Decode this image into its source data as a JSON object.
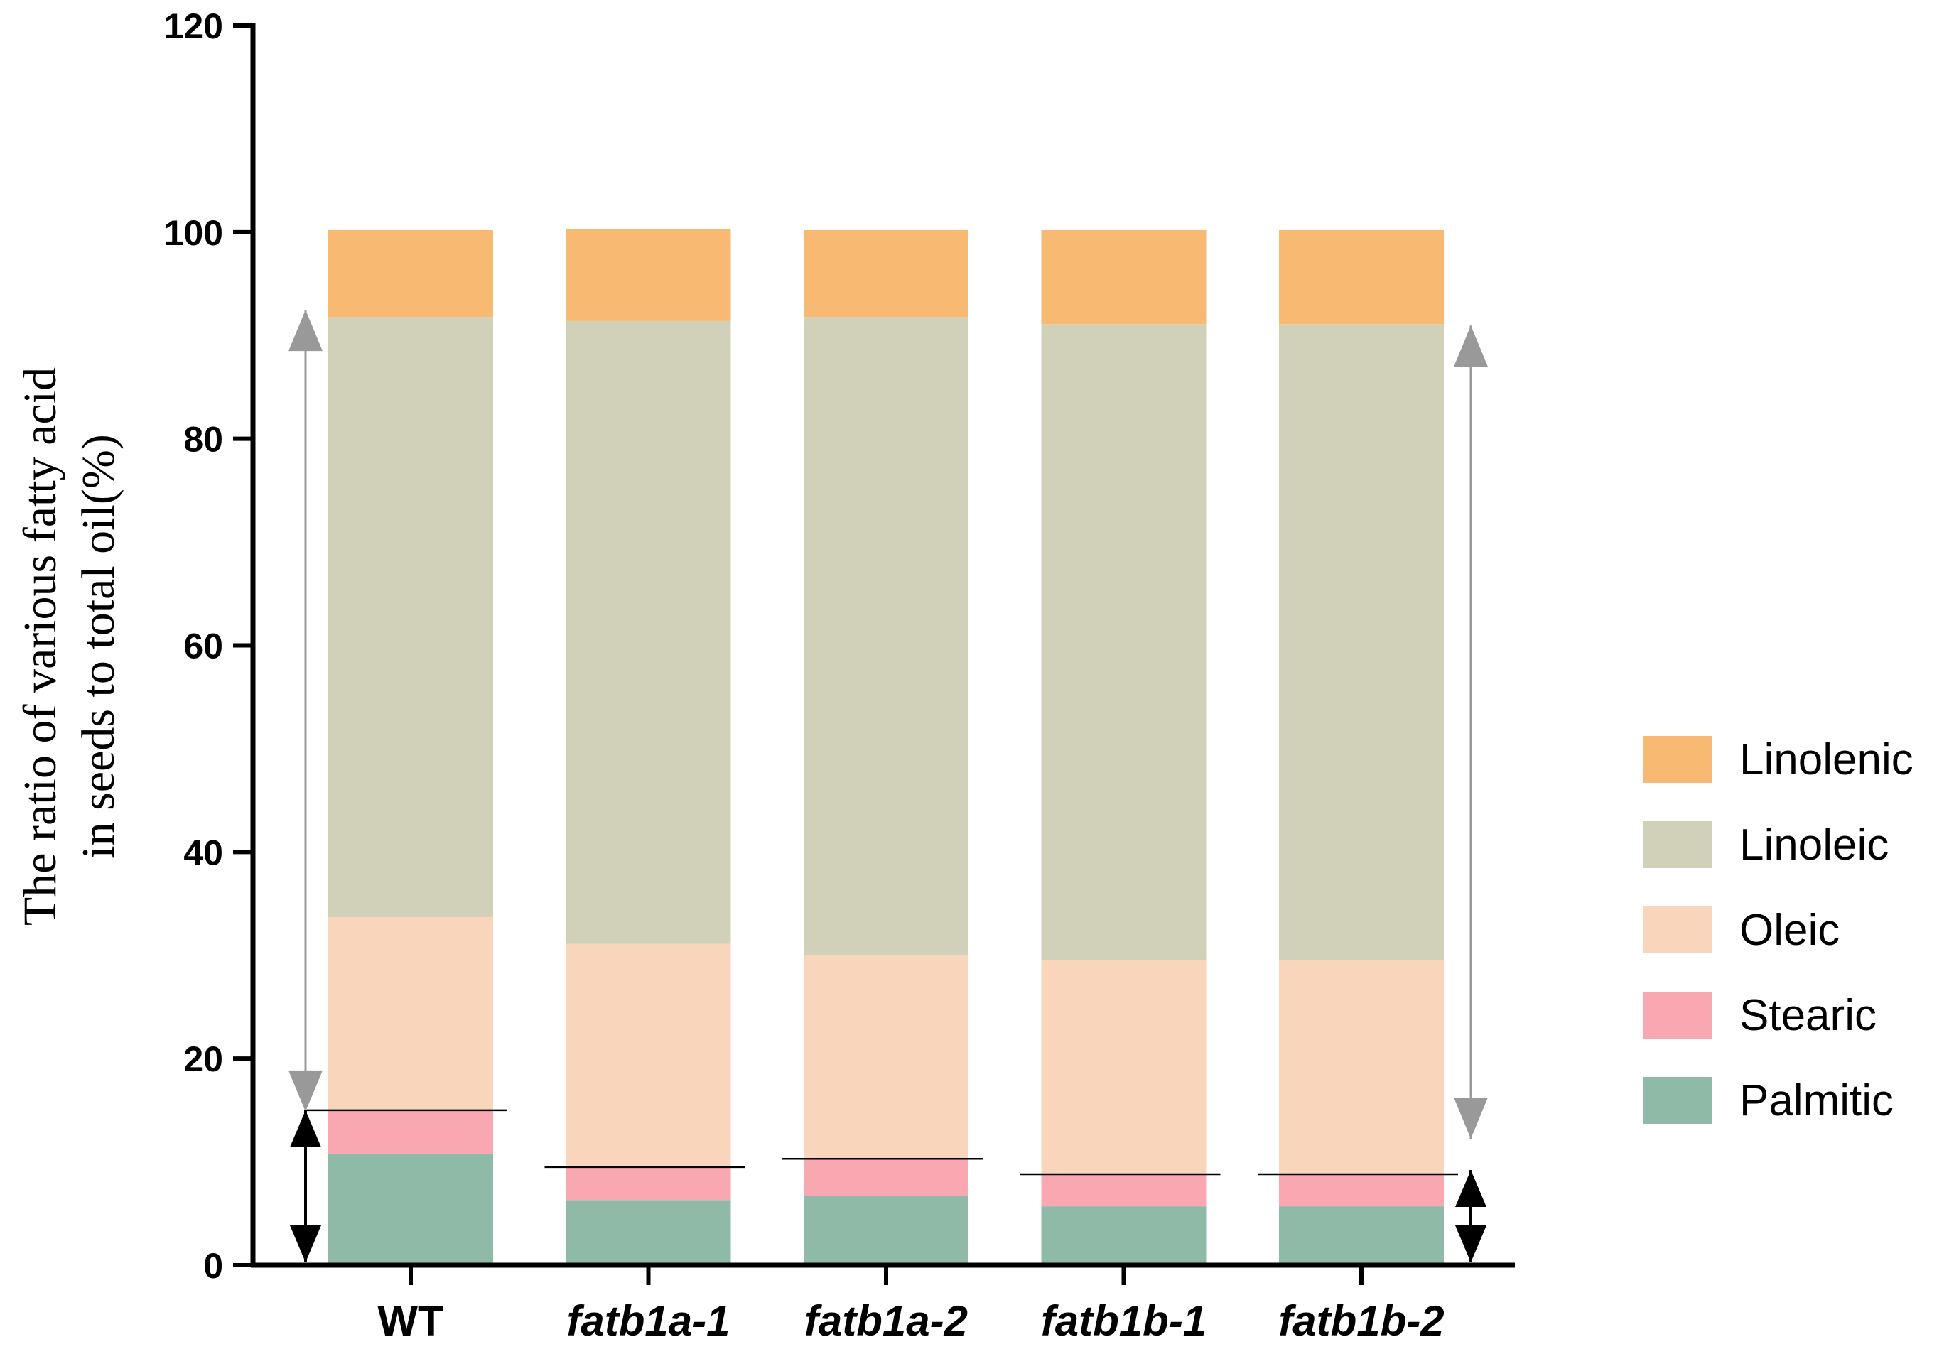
{
  "chart_data": {
    "type": "bar",
    "stacked": true,
    "categories": [
      "WT",
      "fatb1a-1",
      "fatb1a-2",
      "fatb1b-1",
      "fatb1b-2"
    ],
    "italic_categories": [
      false,
      true,
      true,
      true,
      true
    ],
    "ylabel_lines": [
      "The ratio of various fatty acid",
      "in seeds to total oil(%)"
    ],
    "ylim": [
      0,
      120
    ],
    "yticks": [
      0,
      20,
      40,
      60,
      80,
      100,
      120
    ],
    "grid": false,
    "legend_position": "right",
    "series": [
      {
        "name": "Palmitic",
        "color": "#8fbaa8",
        "values": [
          10.8,
          6.3,
          6.7,
          5.7,
          5.7
        ]
      },
      {
        "name": "Stearic",
        "color": "#f9a8b1",
        "values": [
          4.2,
          3.2,
          3.6,
          3.1,
          3.1
        ]
      },
      {
        "name": "Oleic",
        "color": "#f9d5bc",
        "values": [
          18.7,
          21.6,
          19.7,
          20.7,
          20.7
        ]
      },
      {
        "name": "Linoleic",
        "color": "#d0d1b8",
        "values": [
          58.1,
          60.3,
          61.8,
          61.6,
          61.6
        ]
      },
      {
        "name": "Linolenic",
        "color": "#f8ba72",
        "values": [
          8.4,
          8.9,
          8.4,
          9.1,
          9.1
        ]
      }
    ],
    "legend_order": [
      "Linolenic",
      "Linoleic",
      "Oleic",
      "Stearic",
      "Palmitic"
    ]
  }
}
